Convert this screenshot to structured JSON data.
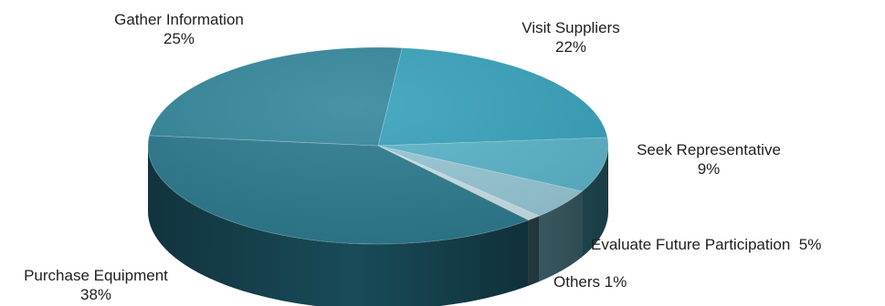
{
  "chart_data": {
    "type": "pie",
    "style": "3d",
    "slices": [
      {
        "label": "Purchase Equipment",
        "value": 38,
        "display": "38%",
        "color": "#2c7a8f",
        "side": "#1a4f5e"
      },
      {
        "label": "Gather Information",
        "value": 25,
        "display": "25%",
        "color": "#33879b",
        "side": "#205a68"
      },
      {
        "label": "Visit Suppliers",
        "value": 22,
        "display": "22%",
        "color": "#36a2bb",
        "side": "#1f6c7e"
      },
      {
        "label": "Seek Representative",
        "value": 9,
        "display": "9%",
        "color": "#5ab4ca",
        "side": "#3a8596"
      },
      {
        "label": "Evaluate Future Participation",
        "value": 5,
        "display": "5%",
        "color": "#97c7d6",
        "side": "#5f95a3"
      },
      {
        "label": "Others",
        "value": 1,
        "display": "1%",
        "color": "#c9e2ea",
        "side": "#3b5a66"
      }
    ]
  }
}
